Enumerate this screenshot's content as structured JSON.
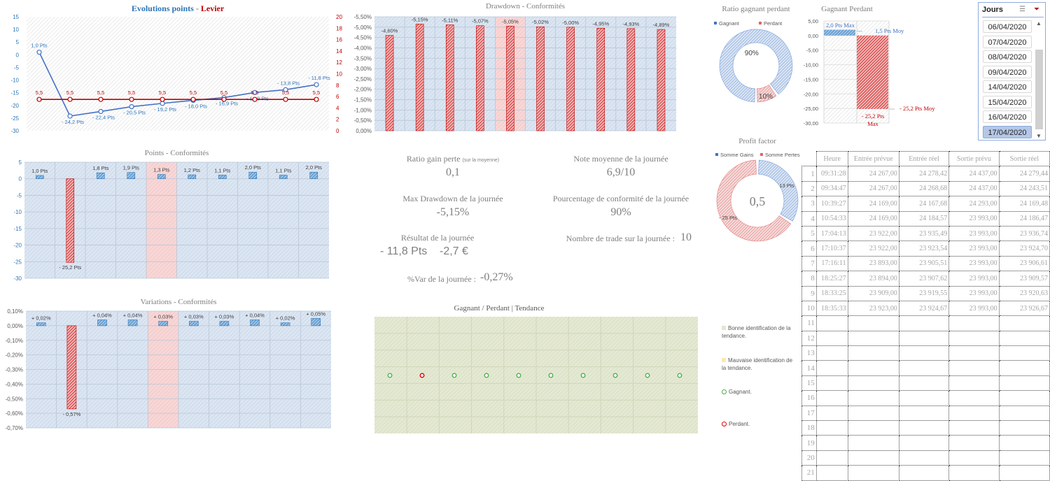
{
  "colors": {
    "blue": "#2e75b6",
    "red": "#c00000",
    "light_blue": "#dae5f1",
    "pink": "#f4cccc",
    "green_bg": "#e2e8d0",
    "gray": "#7f7f7f"
  },
  "chart_data": [
    {
      "id": "evolution",
      "type": "line",
      "title": "Evolutions points",
      "title_suffix": "Levier",
      "title_sep": " - ",
      "yticks_left": [
        "15",
        "10",
        "5",
        "0",
        "-5",
        "-10",
        "-15",
        "-20",
        "-25",
        "-30"
      ],
      "ylim_left": [
        -30,
        15
      ],
      "yticks_right": [
        "20",
        "18",
        "16",
        "14",
        "12",
        "10",
        "8",
        "6",
        "4",
        "2",
        "0"
      ],
      "ylim_right": [
        0,
        20
      ],
      "series": [
        {
          "values": [
            1.0,
            -24.2,
            -22.4,
            -20.5,
            -19.2,
            -18.0,
            -16.9,
            -14.9,
            -13.8,
            -11.8
          ],
          "labels": [
            "1,0 Pts",
            "- 24,2 Pts",
            "- 22,4 Pts",
            "- 20,5 Pts",
            "- 19,2 Pts",
            "- 18,0 Pts",
            "- 16,9 Pts",
            "- 14,9 Pts",
            "- 13,8 Pts",
            "- 11,8 Pts"
          ],
          "axis": "left",
          "color": "#4472c4"
        },
        {
          "values": [
            5.5,
            5.5,
            5.5,
            5.5,
            5.5,
            5.5,
            5.5,
            5.5,
            5.5,
            5.5
          ],
          "labels": [
            "5,5",
            "5,5",
            "5,5",
            "5,5",
            "5,5",
            "5,5",
            "5,5",
            "5,5",
            "5,5",
            "5,5"
          ],
          "axis": "right",
          "color": "#c00000"
        }
      ]
    },
    {
      "id": "points",
      "type": "bar",
      "title": "Points - Conformités",
      "yticks": [
        "5",
        "0",
        "-5",
        "-10",
        "-15",
        "-20",
        "-25",
        "-30"
      ],
      "ylim": [
        -30,
        5
      ],
      "values": [
        1.0,
        -25.2,
        1.8,
        1.9,
        1.3,
        1.2,
        1.1,
        2.0,
        1.1,
        2.0
      ],
      "labels": [
        "1,0 Pts",
        "- 25,2 Pts",
        "1,8 Pts",
        "1,9 Pts",
        "1,3 Pts",
        "1,2 Pts",
        "1,1 Pts",
        "2,0 Pts",
        "1,1 Pts",
        "2,0 Pts"
      ],
      "highlight": 4
    },
    {
      "id": "variations",
      "type": "bar",
      "title": "Variations - Conformités",
      "yticks": [
        "0,10%",
        "0,00%",
        "-0,10%",
        "-0,20%",
        "-0,30%",
        "-0,40%",
        "-0,50%",
        "-0,60%",
        "-0,70%"
      ],
      "ylim": [
        -0.7,
        0.1
      ],
      "values": [
        0.02,
        -0.57,
        0.04,
        0.04,
        0.03,
        0.03,
        0.03,
        0.04,
        0.02,
        0.05
      ],
      "labels": [
        "+ 0,02%",
        "- 0,57%",
        "+ 0,04%",
        "+ 0,04%",
        "+ 0,03%",
        "+ 0,03%",
        "+ 0,03%",
        "+ 0,04%",
        "+ 0,02%",
        "+ 0,05%"
      ],
      "highlight": 4
    },
    {
      "id": "drawdown",
      "type": "bar",
      "title": "Drawdown - Conformités",
      "reversed": true,
      "yticks": [
        "-5,50%",
        "-5,00%",
        "-4,50%",
        "-4,00%",
        "-3,50%",
        "-3,00%",
        "-2,50%",
        "-2,00%",
        "-1,50%",
        "-1,00%",
        "-0,50%",
        "0,00%"
      ],
      "ylim": [
        -5.5,
        0
      ],
      "values": [
        -4.6,
        -5.15,
        -5.11,
        -5.07,
        -5.05,
        -5.02,
        -5.0,
        -4.95,
        -4.93,
        -4.89
      ],
      "labels": [
        "-4,60%",
        "-5,15%",
        "-5,11%",
        "-5,07%",
        "-5,05%",
        "-5,02%",
        "-5,00%",
        "-4,95%",
        "-4,93%",
        "-4,89%"
      ],
      "highlight": 4
    },
    {
      "id": "ratio",
      "type": "pie",
      "title": "Ratio gagnant perdant",
      "legend": [
        "Gagnant",
        "Perdant"
      ],
      "values": [
        90,
        10
      ],
      "labels": [
        "90%",
        "10%"
      ]
    },
    {
      "id": "gagnant_perdant",
      "type": "bar",
      "title": "Gagnant Perdant",
      "yticks": [
        "5,00",
        "0,00",
        "-5,00",
        "-10,00",
        "-15,00",
        "-20,00",
        "-25,00",
        "-30,00"
      ],
      "ylim": [
        -30,
        5
      ],
      "values": [
        2.0,
        -25.2
      ],
      "avg": [
        1.5,
        -25.2
      ],
      "labels": [
        "2,0 Pts Max",
        "- 25,2 Pts Max"
      ],
      "avg_labels": [
        "1,5 Pts Moy",
        "- 25,2 Pts Moy"
      ]
    },
    {
      "id": "profit_factor",
      "type": "pie",
      "title": "Profit factor",
      "legend": [
        "Somme Gains",
        "Somme Pertes"
      ],
      "values": [
        13,
        25.2
      ],
      "labels": [
        "13 Pts",
        "- 25 Pts"
      ],
      "center": "0,5"
    },
    {
      "id": "tendance",
      "type": "scatter",
      "title": "Gagnant / Perdant | Tendance",
      "results": [
        "G",
        "P",
        "G",
        "G",
        "G",
        "G",
        "G",
        "G",
        "G",
        "G"
      ]
    }
  ],
  "stats": {
    "ratio_label": "Ratio gain perte",
    "ratio_sub": "(sur la moyenne)",
    "ratio_value": "0,1",
    "note_label": "Note moyenne de la journée",
    "note_value": "6,9/10",
    "dd_label": "Max Drawdown de la journée",
    "dd_value": "-5,15%",
    "conf_label": "Pourcentage de conformité de la journée",
    "conf_value": "90%",
    "res_label": "Résultat de la journée",
    "res_pts": "- 11,8 Pts",
    "res_eur": "-2,7 €",
    "trades_label": "Nombre de trade sur la journée :",
    "trades_value": "10",
    "var_label": "%Var de la journée :",
    "var_value": "-0,27%"
  },
  "legend": {
    "bonne": "Bonne identification de la tendance.",
    "mauvaise": "Mauvaise identification de la tendance.",
    "gagnant": "Gagnant.",
    "perdant": "Perdant."
  },
  "slicer": {
    "title": "Jours",
    "items": [
      "06/04/2020",
      "07/04/2020",
      "08/04/2020",
      "09/04/2020",
      "14/04/2020",
      "15/04/2020",
      "16/04/2020",
      "17/04/2020"
    ],
    "selected": 7,
    "icons": [
      "multi-select-icon",
      "clear-filter-icon"
    ]
  },
  "table": {
    "headers": [
      "Heure",
      "Entrée prévue",
      "Entrée réel",
      "Sortie prévu",
      "Sortie réel"
    ],
    "rows": [
      [
        "09:31:28",
        "24 267,00",
        "24 278,42",
        "24 437,00",
        "24 279,44"
      ],
      [
        "09:34:47",
        "24 267,00",
        "24 268,68",
        "24 437,00",
        "24 243,51"
      ],
      [
        "10:39:27",
        "24 169,00",
        "24 167,68",
        "24 293,00",
        "24 169,48"
      ],
      [
        "10:54:33",
        "24 169,00",
        "24 184,57",
        "23 993,00",
        "24 186,47"
      ],
      [
        "17:04:13",
        "23 922,00",
        "23 935,49",
        "23 993,00",
        "23 936,74"
      ],
      [
        "17:10:37",
        "23 922,00",
        "23 923,54",
        "23 993,00",
        "23 924,70"
      ],
      [
        "17:16:11",
        "23 893,00",
        "23 905,51",
        "23 993,00",
        "23 906,61"
      ],
      [
        "18:25:27",
        "23 894,00",
        "23 907,62",
        "23 993,00",
        "23 909,57"
      ],
      [
        "18:33:25",
        "23 909,00",
        "23 919,55",
        "23 993,00",
        "23 920,63"
      ],
      [
        "18:35:33",
        "23 923,00",
        "23 924,67",
        "23 993,00",
        "23 926,67"
      ]
    ],
    "row_numbers": [
      "1",
      "2",
      "3",
      "4",
      "5",
      "6",
      "7",
      "8",
      "9",
      "10",
      "11",
      "12",
      "13",
      "14",
      "15",
      "16",
      "17",
      "18",
      "19",
      "20",
      "21"
    ]
  }
}
